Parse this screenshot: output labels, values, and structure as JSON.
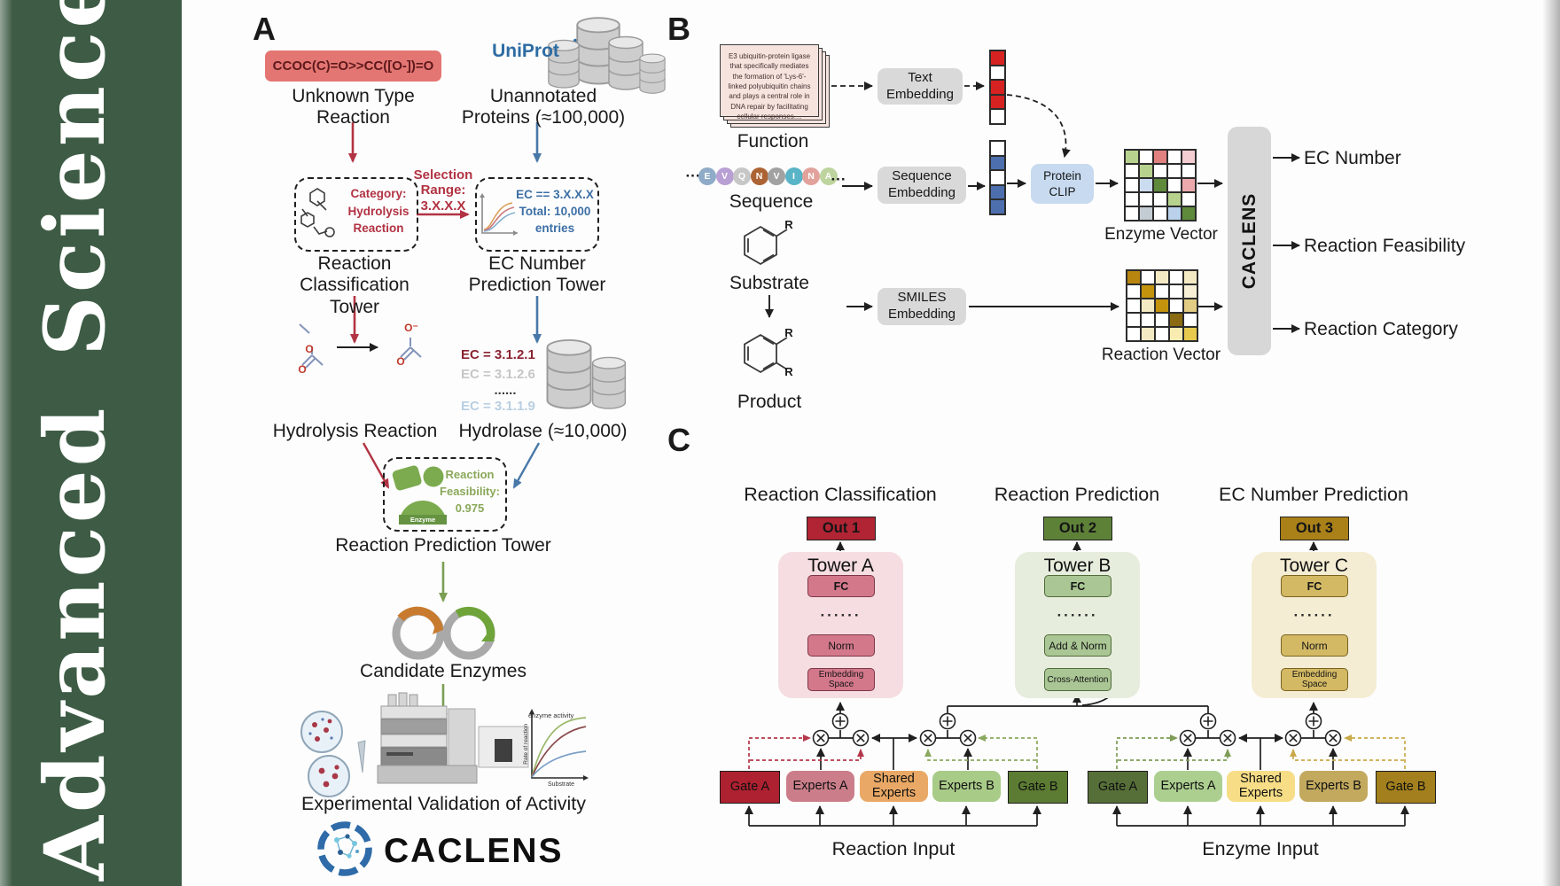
{
  "sidebar": {
    "word_top": "Science",
    "word_bottom": "Advanced"
  },
  "colors": {
    "sidebar_green": "#3e5c45",
    "flow_red": "#b23343",
    "flow_blue": "#4878a8",
    "flow_green": "#7a9e52",
    "smiles_box": "#e37672",
    "uniprot_blue": "#2d6ca3",
    "out1": "#b02433",
    "out2": "#5e8138",
    "out3": "#aa8119",
    "towerA_panel": "#f5dde1",
    "towerB_panel": "#e6eddd",
    "towerC_panel": "#f4edd3",
    "towerA_box": "#d3788b",
    "towerB_box": "#a9c694",
    "towerC_box": "#d3b964"
  },
  "panelA": {
    "label": "A",
    "smiles": "CCOC(C)=O>>CC([O-])=O",
    "unknown_reaction": "Unknown Type Reaction",
    "uniprot": "UniProt",
    "unannotated_proteins": "Unannotated Proteins (≈100,000)",
    "category_box": {
      "line1": "Category:",
      "line2": "Hydrolysis",
      "line3": "Reaction"
    },
    "selection": {
      "line1": "Selection",
      "line2": "Range:",
      "line3": "3.X.X.X"
    },
    "ec_box": {
      "line1": "EC == 3.X.X.X",
      "line2": "Total: 10,000",
      "line3": "entries"
    },
    "classification_tower": "Reaction Classification Tower",
    "ec_prediction_tower": "EC Number Prediction Tower",
    "ec_list": [
      {
        "text": "EC = 3.1.2.1",
        "color": "#8b2330"
      },
      {
        "text": "EC = 3.1.2.6",
        "color": "#c6c6c6"
      },
      {
        "text": "......",
        "color": "#3a3a3a"
      },
      {
        "text": "EC = 3.1.1.9",
        "color": "#b9cfe2"
      }
    ],
    "atom_o": "O",
    "atom_o_minus": "O⁻",
    "hydrolysis_reaction": "Hydrolysis Reaction",
    "hydrolase": "Hydrolase (≈10,000)",
    "enzyme": "Enzyme",
    "feasibility": {
      "line1": "Reaction",
      "line2": "Feasibility:",
      "line3": "0.975"
    },
    "reaction_prediction_tower": "Reaction Prediction Tower",
    "candidate_enzymes": "Candidate Enzymes",
    "activity_plot": {
      "annotation": "enzyme activity",
      "ylabel": "Rate of reaction",
      "xlabel": "Substrate"
    },
    "validation": "Experimental Validation of Activity",
    "wordmark": "CACLENS"
  },
  "panelB": {
    "label": "B",
    "function_card": "E3 ubiquitin-protein ligase that specifically mediates the formation of 'Lys-6'-linked polyubiquitin chains and plays a central role in DNA repair by facilitating cellular responses....",
    "function_label": "Function",
    "ellipsis": "···",
    "sequence_letters": [
      {
        "ch": "E",
        "color": "#8fabc7"
      },
      {
        "ch": "V",
        "color": "#b89fd4"
      },
      {
        "ch": "Q",
        "color": "#c7c7c7"
      },
      {
        "ch": "N",
        "color": "#ad6435"
      },
      {
        "ch": "V",
        "color": "#a2a2a2"
      },
      {
        "ch": "I",
        "color": "#58b4c6"
      },
      {
        "ch": "N",
        "color": "#e2a29c"
      },
      {
        "ch": "A",
        "color": "#bdd49e"
      }
    ],
    "sequence_label": "Sequence",
    "substrate_label": "Substrate",
    "product_label": "Product",
    "r_label": "R",
    "text_embedding": "Text Embedding",
    "sequence_embedding": "Sequence Embedding",
    "smiles_embedding": "SMILES Embedding",
    "protein_clip": "Protein CLIP",
    "enzyme_vector_label": "Enzyme Vector",
    "reaction_vector_label": "Reaction Vector",
    "caclens": "CACLENS",
    "outputs": [
      "EC Number",
      "Reaction Feasibility",
      "Reaction Category"
    ],
    "text_vector": [
      "#d62321",
      "#ffffff",
      "#d62321",
      "#d62321",
      "#ffffff"
    ],
    "seq_vector": [
      "#ffffff",
      "#4d6fae",
      "#ffffff",
      "#4d6fae",
      "#4d6fae"
    ],
    "enzyme_matrix": [
      [
        "#b7d28d",
        "#ffffff",
        "#e0807f",
        "#ffffff",
        "#f3cdd1"
      ],
      [
        "#ffffff",
        "#b7d28d",
        "#ffffff",
        "#ffffff",
        "#ffffff"
      ],
      [
        "#ffffff",
        "#ccdcf0",
        "#5f8a3c",
        "#ffffff",
        "#eba9ad"
      ],
      [
        "#ffffff",
        "#ffffff",
        "#ffffff",
        "#b7d28d",
        "#ffffff"
      ],
      [
        "#ffffff",
        "#c3cbd3",
        "#ffffff",
        "#b9d1ea",
        "#5f8a3c"
      ]
    ],
    "reaction_matrix": [
      [
        "#b8860f",
        "#ffffff",
        "#f3e9c3",
        "#ffffff",
        "#f3e9c3"
      ],
      [
        "#ffffff",
        "#c3930d",
        "#ffffff",
        "#ffffff",
        "#f7f0d6"
      ],
      [
        "#ffffff",
        "#f3e9c3",
        "#c3930d",
        "#ffffff",
        "#e2cb83"
      ],
      [
        "#ffffff",
        "#ffffff",
        "#ffffff",
        "#8a6a12",
        "#ffffff"
      ],
      [
        "#ffffff",
        "#f3e9c3",
        "#ffffff",
        "#f8ecb0",
        "#e7c94e"
      ]
    ]
  },
  "panelC": {
    "label": "C",
    "headers": [
      "Reaction Classification",
      "Reaction Prediction",
      "EC Number Prediction"
    ],
    "outs": [
      "Out 1",
      "Out 2",
      "Out 3"
    ],
    "towers": [
      {
        "title": "Tower A",
        "top_box": "FC",
        "dots": "······",
        "mid_box": "Norm",
        "bottom_box": "Embedding Space"
      },
      {
        "title": "Tower B",
        "top_box": "FC",
        "dots": "······",
        "mid_box": "Add & Norm",
        "bottom_box": "Cross-Attention"
      },
      {
        "title": "Tower C",
        "top_box": "FC",
        "dots": "······",
        "mid_box": "Norm",
        "bottom_box": "Embedding Space"
      }
    ],
    "groups": [
      {
        "boxes": [
          {
            "label": "Gate A",
            "color": "#ae2130"
          },
          {
            "label": "Experts A",
            "color": "#cb7e8a"
          },
          {
            "label": "Shared Experts",
            "color": "#e9a865"
          },
          {
            "label": "Experts B",
            "color": "#a9cb88"
          },
          {
            "label": "Gate B",
            "color": "#5c7b33"
          }
        ],
        "input_label": "Reaction Input"
      },
      {
        "boxes": [
          {
            "label": "Gate A",
            "color": "#566f38"
          },
          {
            "label": "Experts A",
            "color": "#accf90"
          },
          {
            "label": "Shared Experts",
            "color": "#f6dd86"
          },
          {
            "label": "Experts B",
            "color": "#c2a95e"
          },
          {
            "label": "Gate B",
            "color": "#a3801d"
          }
        ],
        "input_label": "Enzyme Input"
      }
    ]
  }
}
